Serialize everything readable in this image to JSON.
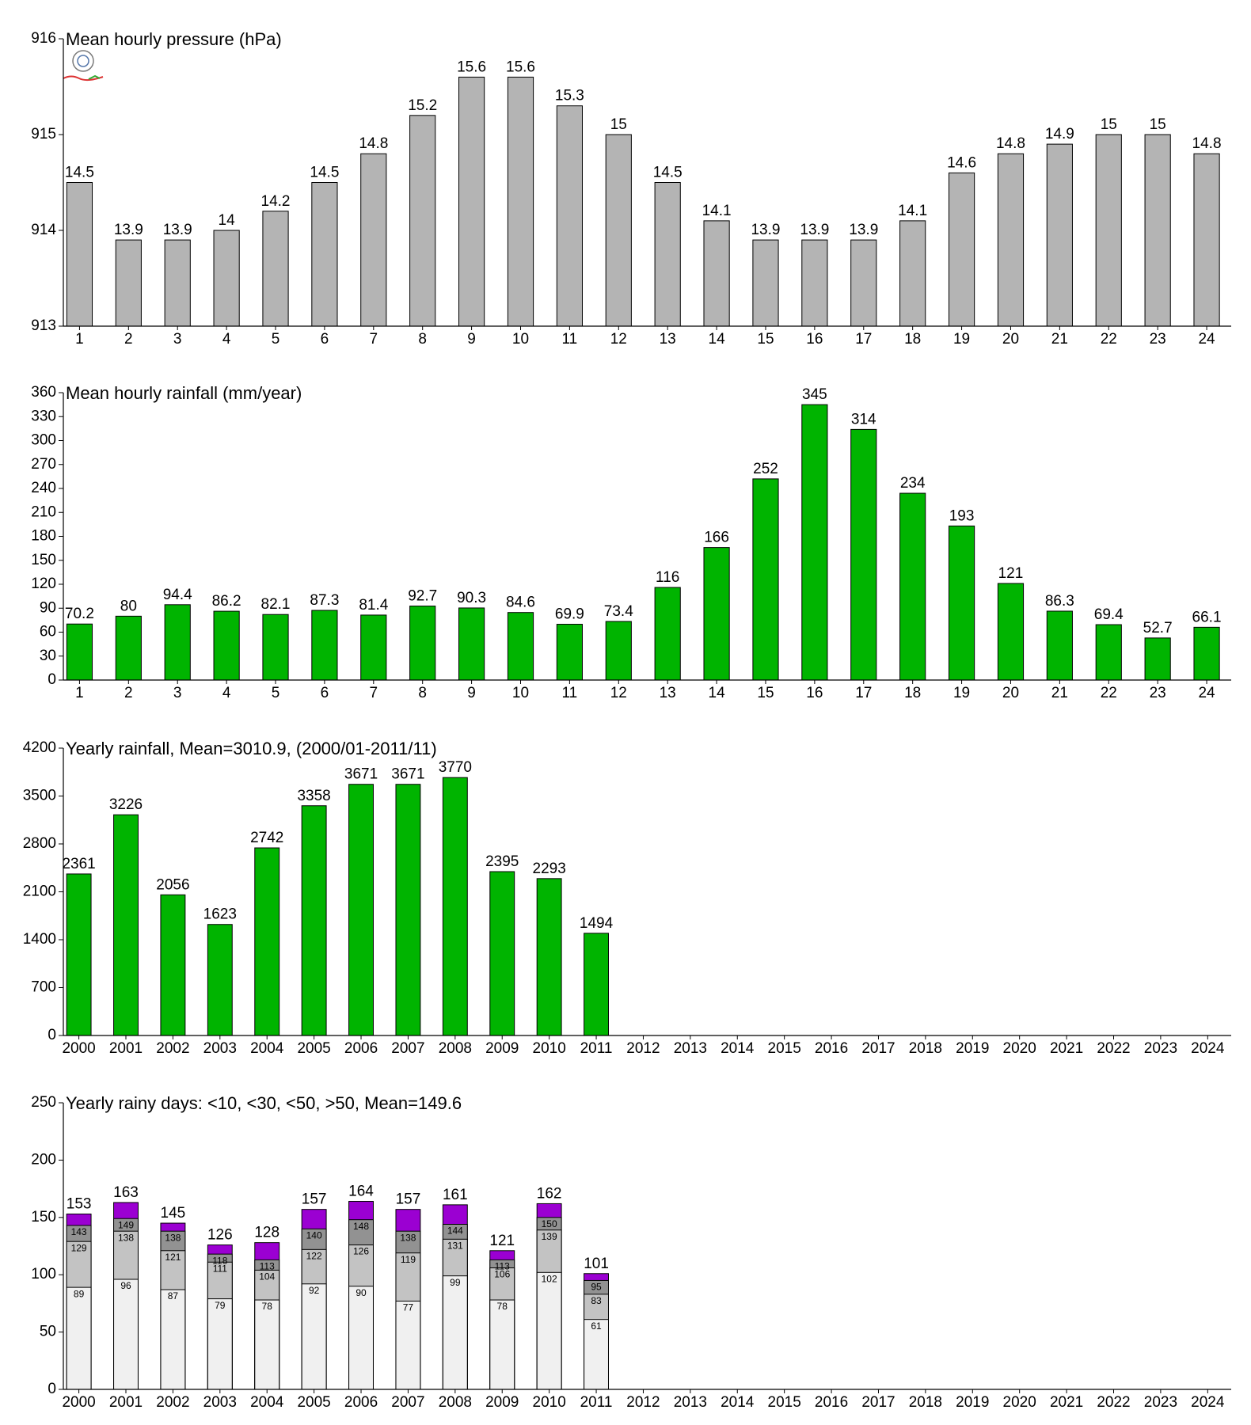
{
  "chart_data": [
    {
      "type": "bar",
      "title": "Mean hourly pressure (hPa)",
      "categories": [
        "1",
        "2",
        "3",
        "4",
        "5",
        "6",
        "7",
        "8",
        "9",
        "10",
        "11",
        "12",
        "13",
        "14",
        "15",
        "16",
        "17",
        "18",
        "19",
        "20",
        "21",
        "22",
        "23",
        "24"
      ],
      "values": [
        914.5,
        913.9,
        913.9,
        914.0,
        914.2,
        914.5,
        914.8,
        915.2,
        915.6,
        915.6,
        915.3,
        915.0,
        914.5,
        914.1,
        913.9,
        913.9,
        913.9,
        914.1,
        914.6,
        914.8,
        914.9,
        915.0,
        915.0,
        914.8
      ],
      "value_labels": [
        "14.5",
        "13.9",
        "13.9",
        "14",
        "14.2",
        "14.5",
        "14.8",
        "15.2",
        "15.6",
        "15.6",
        "15.3",
        "15",
        "14.5",
        "14.1",
        "13.9",
        "13.9",
        "13.9",
        "14.1",
        "14.6",
        "14.8",
        "14.9",
        "15",
        "15",
        "14.8"
      ],
      "color": "#b4b4b4",
      "ylim": [
        913,
        916
      ],
      "yticks": [
        913,
        914,
        915,
        916
      ]
    },
    {
      "type": "bar",
      "title": "Mean hourly rainfall (mm/year)",
      "categories": [
        "1",
        "2",
        "3",
        "4",
        "5",
        "6",
        "7",
        "8",
        "9",
        "10",
        "11",
        "12",
        "13",
        "14",
        "15",
        "16",
        "17",
        "18",
        "19",
        "20",
        "21",
        "22",
        "23",
        "24"
      ],
      "values": [
        70.2,
        80,
        94.4,
        86.2,
        82.1,
        87.3,
        81.4,
        92.7,
        90.3,
        84.6,
        69.9,
        73.4,
        116,
        166,
        252,
        345,
        314,
        234,
        193,
        121,
        86.3,
        69.4,
        52.7,
        66.1
      ],
      "color": "#00b400",
      "ylim": [
        0,
        360
      ],
      "yticks": [
        0,
        30,
        60,
        90,
        120,
        150,
        180,
        210,
        240,
        270,
        300,
        330,
        360
      ]
    },
    {
      "type": "bar",
      "title": "Yearly rainfall, Mean=3010.9, (2000/01-2011/11)",
      "categories": [
        "2000",
        "2001",
        "2002",
        "2003",
        "2004",
        "2005",
        "2006",
        "2007",
        "2008",
        "2009",
        "2010",
        "2011",
        "2012",
        "2013",
        "2014",
        "2015",
        "2016",
        "2017",
        "2018",
        "2019",
        "2020",
        "2021",
        "2022",
        "2023",
        "2024"
      ],
      "values": [
        2361,
        3226,
        2056,
        1623,
        2742,
        3358,
        3671,
        3671,
        3770,
        2395,
        2293,
        1494,
        null,
        null,
        null,
        null,
        null,
        null,
        null,
        null,
        null,
        null,
        null,
        null,
        null
      ],
      "color": "#00b400",
      "ylim": [
        0,
        4200
      ],
      "yticks": [
        0,
        700,
        1400,
        2100,
        2800,
        3500,
        4200
      ]
    },
    {
      "type": "overlap_bar",
      "title": "Yearly rainy days: <10, <30, <50, >50, Mean=149.6",
      "categories": [
        "2000",
        "2001",
        "2002",
        "2003",
        "2004",
        "2005",
        "2006",
        "2007",
        "2008",
        "2009",
        "2010",
        "2011",
        "2012",
        "2013",
        "2014",
        "2015",
        "2016",
        "2017",
        "2018",
        "2019",
        "2020",
        "2021",
        "2022",
        "2023",
        "2024"
      ],
      "series": [
        {
          "color": "#f0f0f0",
          "values": [
            89,
            96,
            87,
            79,
            78,
            92,
            90,
            77,
            99,
            78,
            102,
            61,
            null,
            null,
            null,
            null,
            null,
            null,
            null,
            null,
            null,
            null,
            null,
            null,
            null
          ]
        },
        {
          "color": "#c3c3c3",
          "values": [
            129,
            138,
            121,
            111,
            104,
            122,
            126,
            119,
            131,
            106,
            139,
            83,
            null,
            null,
            null,
            null,
            null,
            null,
            null,
            null,
            null,
            null,
            null,
            null,
            null
          ]
        },
        {
          "color": "#929292",
          "values": [
            143,
            149,
            138,
            118,
            113,
            140,
            148,
            138,
            144,
            113,
            150,
            95,
            null,
            null,
            null,
            null,
            null,
            null,
            null,
            null,
            null,
            null,
            null,
            null,
            null
          ]
        },
        {
          "color": "#9b00d2",
          "values": [
            153,
            163,
            145,
            126,
            128,
            157,
            164,
            157,
            161,
            121,
            162,
            101,
            null,
            null,
            null,
            null,
            null,
            null,
            null,
            null,
            null,
            null,
            null,
            null,
            null
          ]
        }
      ],
      "ylim": [
        0,
        250
      ],
      "yticks": [
        0,
        50,
        100,
        150,
        200,
        250
      ]
    }
  ]
}
